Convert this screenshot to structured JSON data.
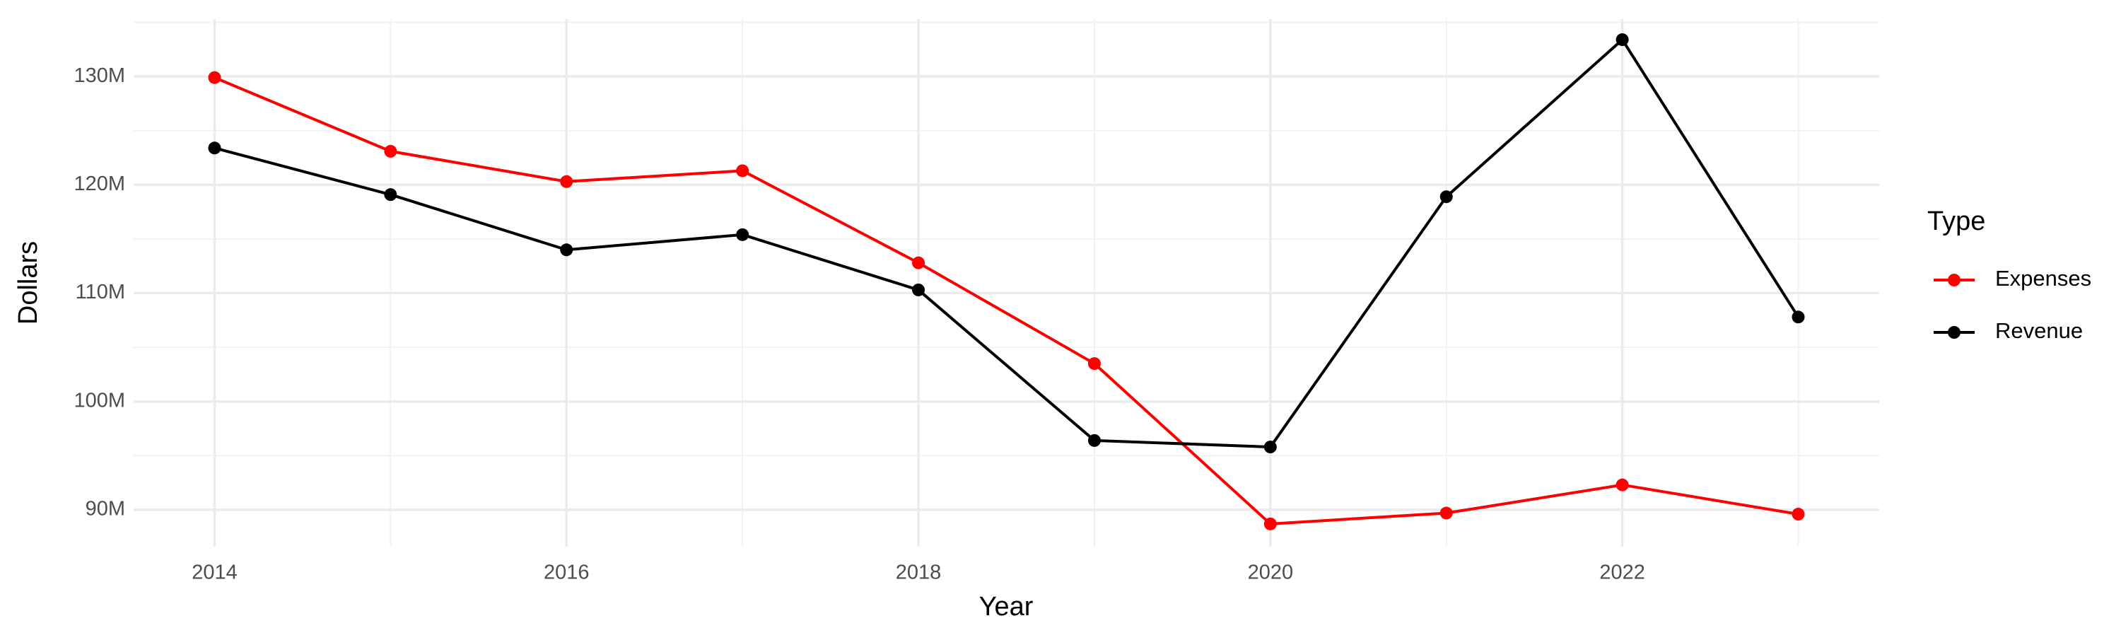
{
  "chart_data": {
    "type": "line",
    "x_label": "Year",
    "y_label": "Dollars",
    "legend_title": "Type",
    "legend_position": "right",
    "grid": true,
    "x": [
      2014,
      2015,
      2016,
      2017,
      2018,
      2019,
      2020,
      2021,
      2022,
      2023
    ],
    "xlim": [
      2013.54,
      2023.46
    ],
    "xticks": [
      2014,
      2016,
      2018,
      2020,
      2022
    ],
    "ylim": [
      86600000,
      135300000
    ],
    "yticks": [
      {
        "value": 90000000,
        "label": "90M"
      },
      {
        "value": 100000000,
        "label": "100M"
      },
      {
        "value": 110000000,
        "label": "110M"
      },
      {
        "value": 120000000,
        "label": "120M"
      },
      {
        "value": 130000000,
        "label": "130M"
      }
    ],
    "series": [
      {
        "name": "Expenses",
        "color": "#ff0000",
        "values": [
          129900000,
          123100000,
          120300000,
          121300000,
          112800000,
          103500000,
          88700000,
          89700000,
          92300000,
          89600000
        ]
      },
      {
        "name": "Revenue",
        "color": "#000000",
        "values": [
          123400000,
          119100000,
          114000000,
          115400000,
          110300000,
          96400000,
          95800000,
          118900000,
          133400000,
          107800000
        ]
      }
    ]
  }
}
